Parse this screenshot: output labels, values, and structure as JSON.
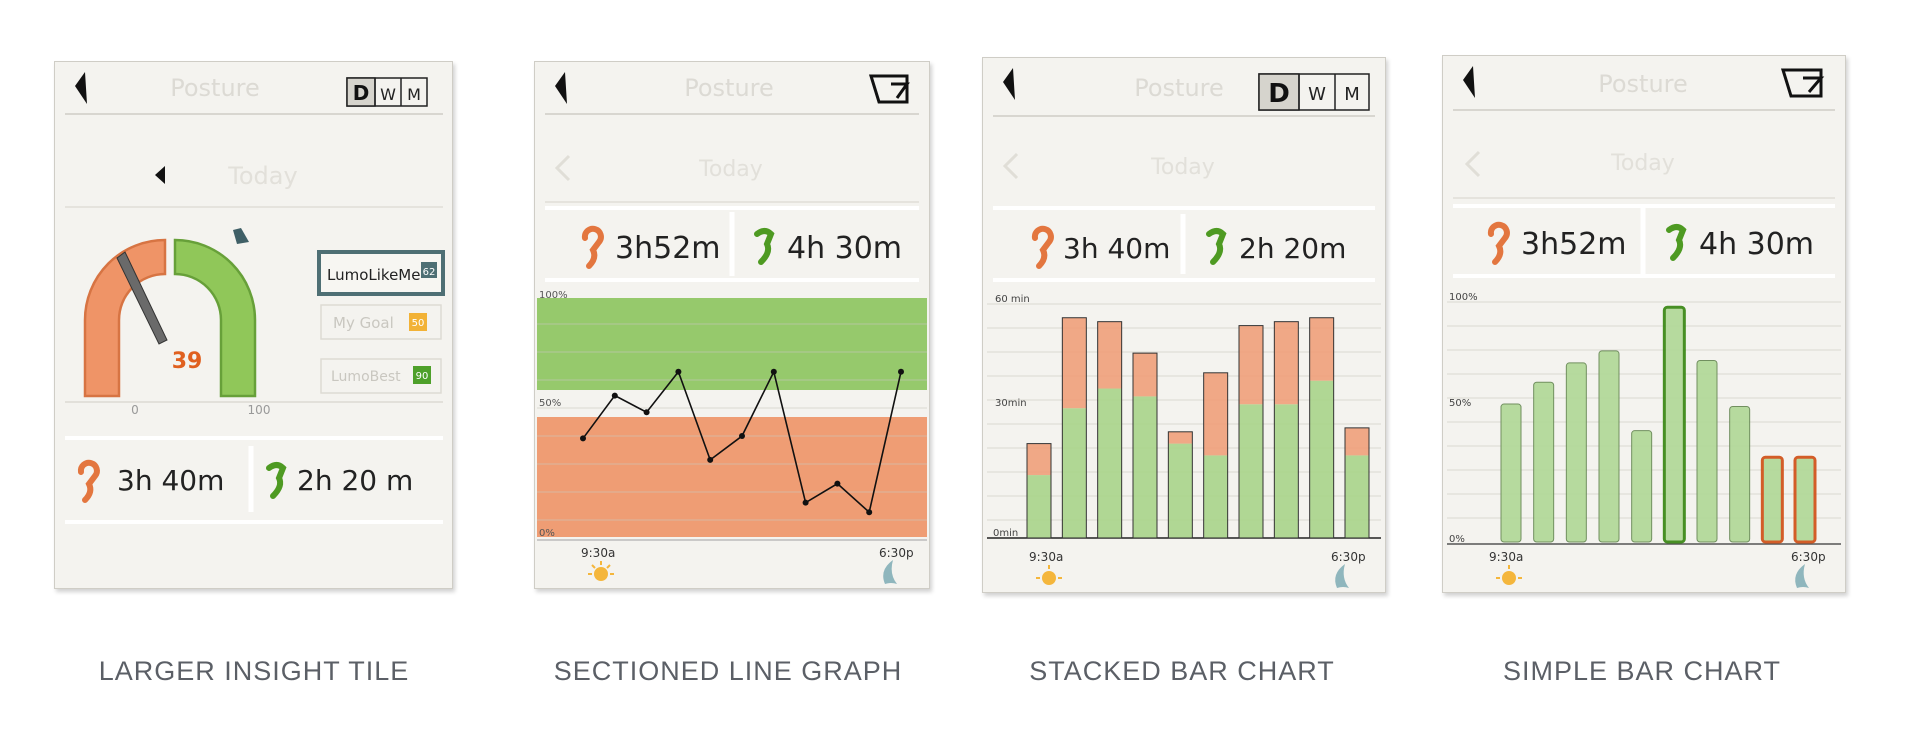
{
  "panels": [
    {
      "title": "Posture",
      "period_buttons": [
        "D",
        "W",
        "M"
      ],
      "date_label": "Today",
      "gauge": {
        "value": "39",
        "min_label": "0",
        "max_label": "100"
      },
      "leaderboard": [
        {
          "label": "LumoLikeMe",
          "score": "62"
        },
        {
          "label": "My Goal",
          "score": "50"
        },
        {
          "label": "LumoBest",
          "score": "90"
        }
      ],
      "stats": {
        "bad": "3h 40m",
        "good": "2h 20 m"
      },
      "caption": "LARGER INSIGHT TILE"
    },
    {
      "title": "Posture",
      "date_label": "Today",
      "stats": {
        "bad": "3h52m",
        "good": "4h 30m"
      },
      "y_ticks": [
        "100%",
        "50%",
        "0%"
      ],
      "time_start": "9:30a",
      "time_end": "6:30p",
      "caption": "SECTIONED LINE GRAPH"
    },
    {
      "title": "Posture",
      "period_buttons": [
        "D",
        "W",
        "M"
      ],
      "date_label": "Today",
      "stats": {
        "bad": "3h 40m",
        "good": "2h 20m"
      },
      "y_ticks": [
        "60 min",
        "30min",
        "0min"
      ],
      "time_start": "9:30a",
      "time_end": "6:30p",
      "caption": "STACKED BAR CHART"
    },
    {
      "title": "Posture",
      "date_label": "Today",
      "stats": {
        "bad": "3h52m",
        "good": "4h 30m"
      },
      "y_ticks": [
        "100%",
        "50%",
        "0%"
      ],
      "time_start": "9:30a",
      "time_end": "6:30p",
      "caption": "SIMPLE BAR CHART"
    }
  ],
  "chart_data": [
    {
      "type": "line",
      "y": [
        0.41,
        0.59,
        0.52,
        0.69,
        0.32,
        0.42,
        0.69,
        0.14,
        0.22,
        0.1,
        0.69
      ],
      "ylim": [
        0,
        1
      ],
      "xlabel": "",
      "ylabel": ""
    },
    {
      "type": "bar",
      "stacked": true,
      "series": [
        {
          "values": [
            16,
            33,
            38,
            36,
            24,
            21,
            34,
            34,
            40,
            21
          ]
        },
        {
          "values": [
            8,
            23,
            17,
            11,
            3,
            21,
            20,
            21,
            16,
            7
          ]
        }
      ],
      "ylim": [
        0,
        60
      ],
      "xlabel": "",
      "ylabel": ""
    },
    {
      "type": "bar",
      "values": [
        0.57,
        0.66,
        0.74,
        0.79,
        0.46,
        0.97,
        0.75,
        0.56,
        0.35,
        0.35
      ],
      "highlight_series": [
        "normal",
        "normal",
        "normal",
        "normal",
        "normal",
        "best",
        "normal",
        "normal",
        "bad",
        "bad"
      ],
      "ylim": [
        0,
        1
      ],
      "xlabel": "",
      "ylabel": ""
    }
  ]
}
